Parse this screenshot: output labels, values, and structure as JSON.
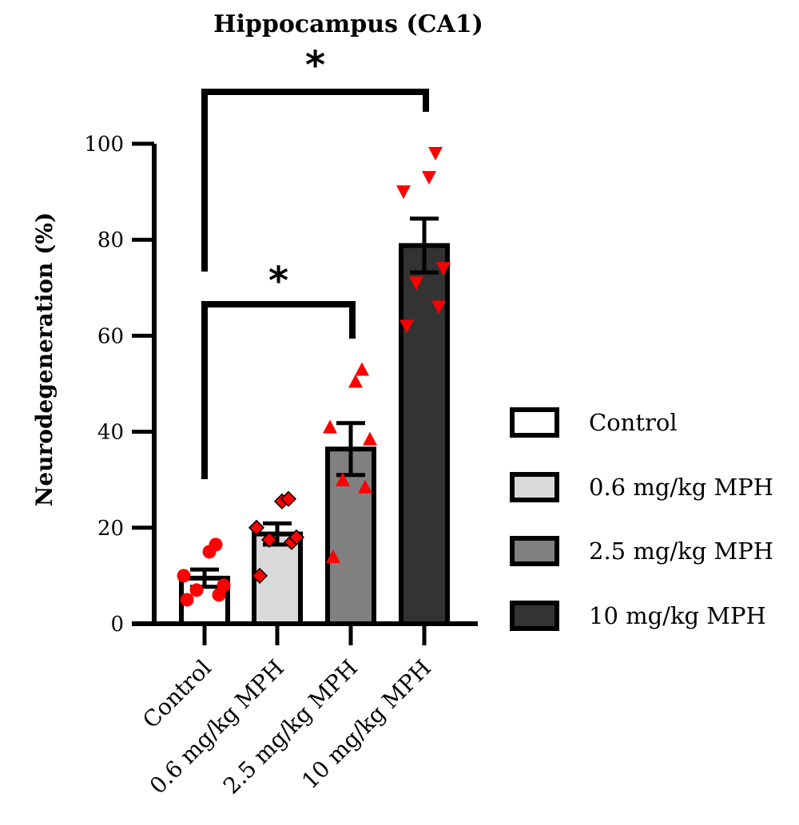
{
  "chart_data": {
    "type": "bar",
    "title": "Hippocampus (CA1)",
    "ylabel": "Neurodegeneration (%)",
    "xlabel": "",
    "ylim": [
      0,
      100
    ],
    "yticks": [
      0,
      20,
      40,
      60,
      80,
      100
    ],
    "grid": false,
    "legend_position": "right",
    "categories": [
      "Control",
      "0.6 mg/kg MPH",
      "2.5 mg/kg MPH",
      "10 mg/kg MPH"
    ],
    "values": [
      9.5,
      18.7,
      36.4,
      78.8
    ],
    "sem": [
      1.8,
      2.2,
      5.4,
      5.6
    ],
    "bar_colors": [
      "#ffffff",
      "#d9d9d9",
      "#808080",
      "#333333"
    ],
    "point_color": "#ff0000",
    "point_markers": [
      "circle",
      "diamond",
      "triangle-up",
      "triangle-down"
    ],
    "points": [
      [
        5,
        6,
        7,
        8,
        10,
        15,
        16.5
      ],
      [
        10,
        17,
        17.5,
        18,
        20,
        25.5,
        26
      ],
      [
        14,
        28.5,
        30,
        38.5,
        41,
        50.5,
        53
      ],
      [
        62,
        66,
        71,
        74,
        90,
        93,
        98
      ]
    ],
    "significance": [
      {
        "from": "Control",
        "to": "2.5 mg/kg MPH",
        "label": "*"
      },
      {
        "from": "Control",
        "to": "10 mg/kg MPH",
        "label": "*"
      }
    ],
    "legend": [
      "Control",
      "0.6 mg/kg MPH",
      "2.5 mg/kg MPH",
      "10 mg/kg MPH"
    ]
  }
}
